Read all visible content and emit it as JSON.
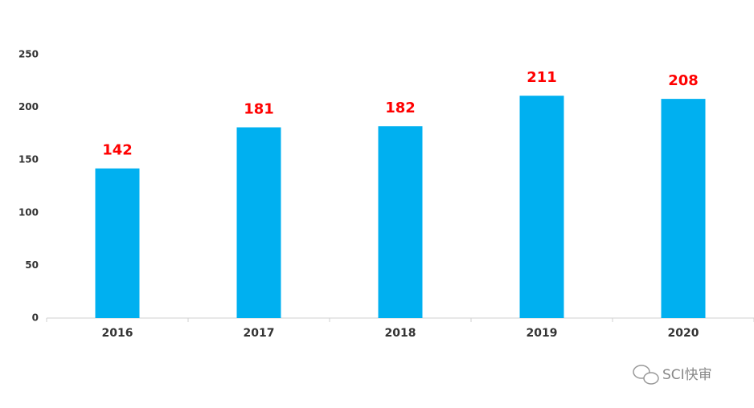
{
  "chart_data": {
    "type": "bar",
    "categories": [
      "2016",
      "2017",
      "2018",
      "2019",
      "2020"
    ],
    "values": [
      142,
      181,
      182,
      211,
      208
    ],
    "color": "#00b0f0",
    "value_label_color": "#ff0000",
    "ylim": [
      0,
      250
    ],
    "yticks": [
      0,
      50,
      100,
      150,
      200,
      250
    ],
    "grid": false,
    "watermark": "SCI快审"
  }
}
